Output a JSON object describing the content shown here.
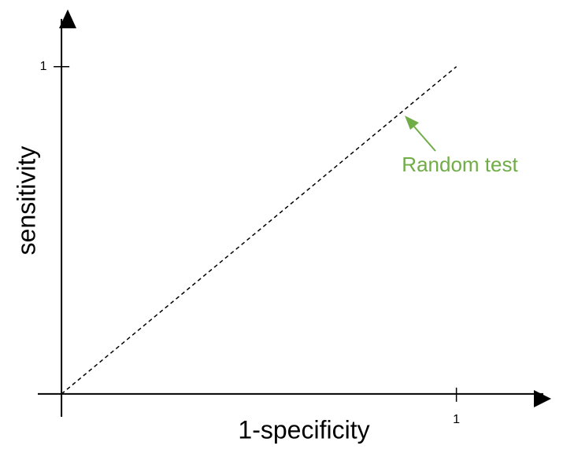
{
  "chart_data": {
    "type": "line",
    "x_label": "1-specificity",
    "y_label": "sensitivity",
    "x": [
      0,
      1
    ],
    "series": [
      {
        "name": "Random test",
        "color": "#000000",
        "values": [
          0,
          1
        ]
      }
    ],
    "annotation": {
      "text": "Random test",
      "color": "#70ad47"
    },
    "xlim": [
      -0.06,
      1.24
    ],
    "ylim": [
      -0.07,
      1.17
    ],
    "xticks": [
      1
    ],
    "yticks": [
      1
    ],
    "line_style": "dashed",
    "grid": false
  }
}
